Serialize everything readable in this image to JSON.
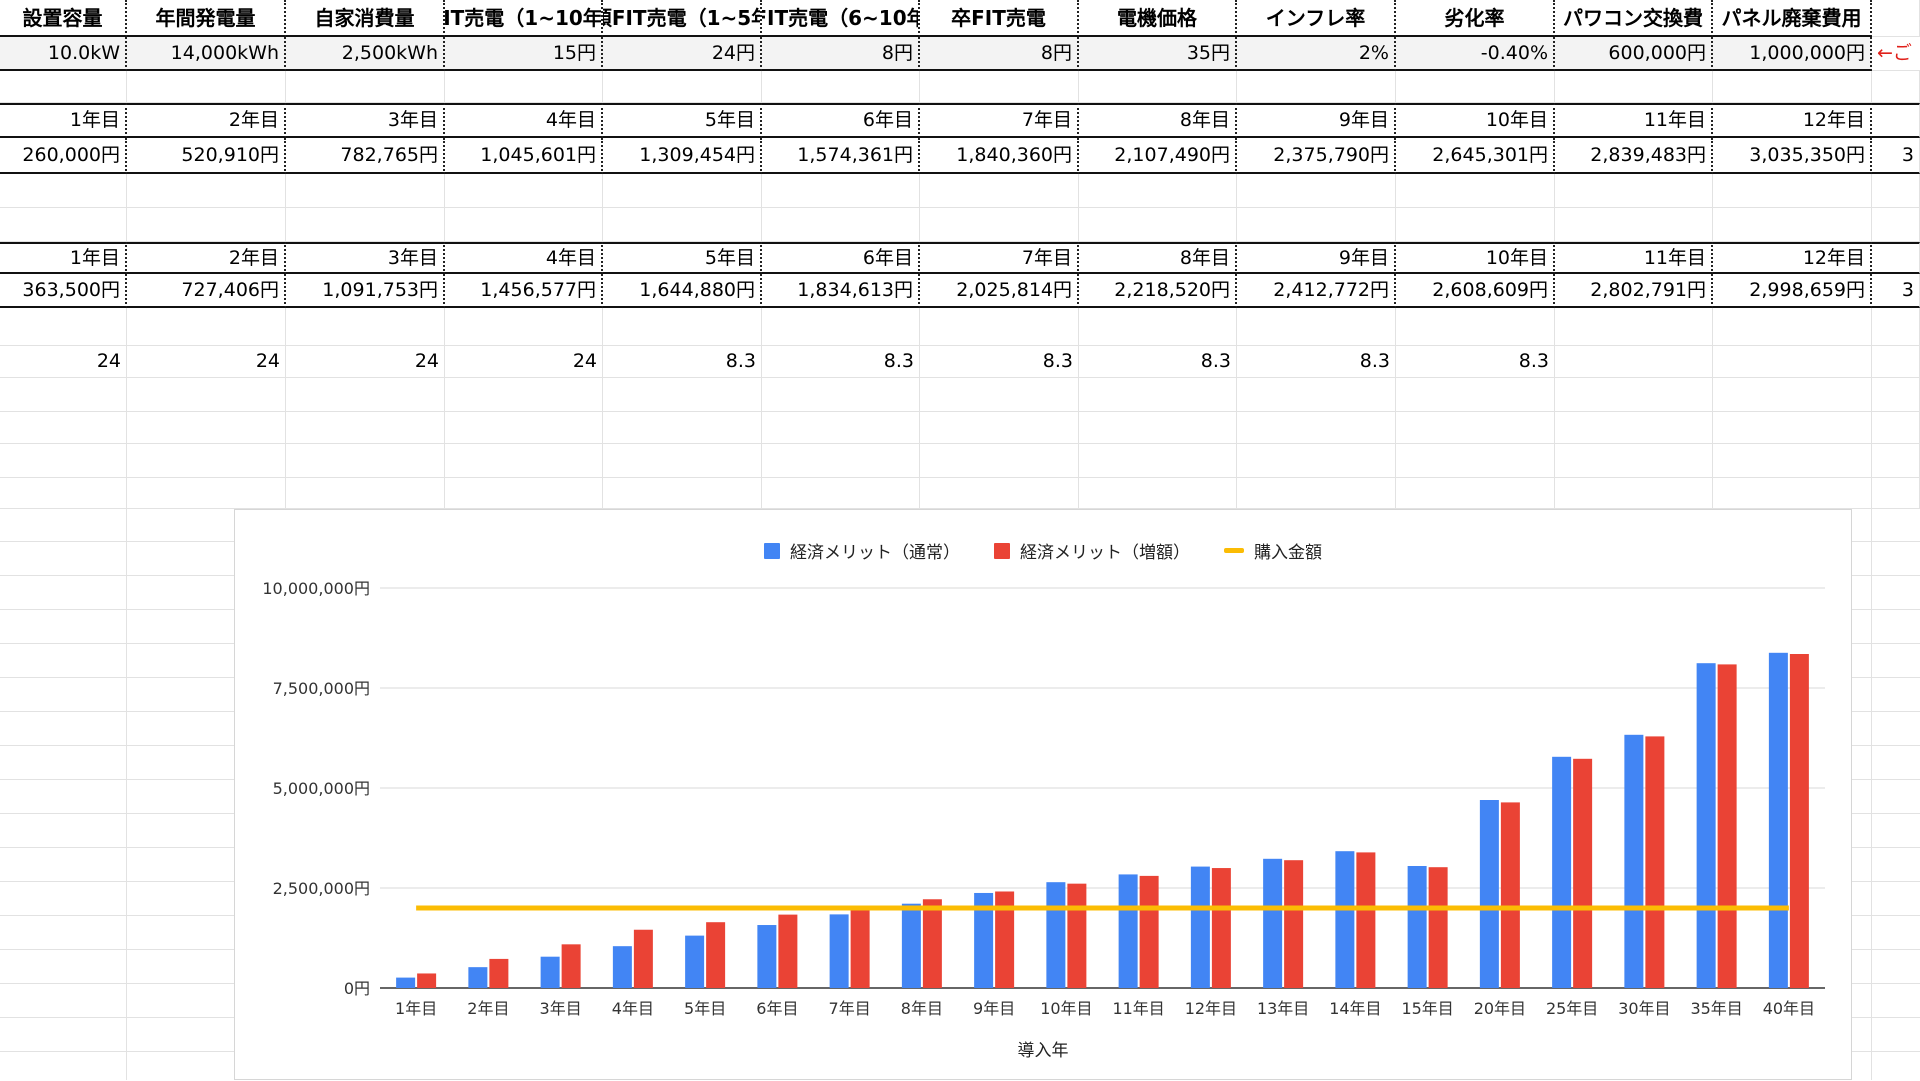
{
  "sheet": {
    "params_headers": [
      "設置容量",
      "年間発電量",
      "自家消費量",
      "IT売電（1~10年",
      "頒FIT売電（1~5年",
      "FIT売電（6~10年",
      "卒FIT売電",
      "電機価格",
      "インフレ率",
      "劣化率",
      "パワコン交換費",
      "パネル廃棄費用"
    ],
    "params_values": [
      "10.0kW",
      "14,000kWh",
      "2,500kWh",
      "15円",
      "24円",
      "8円",
      "8円",
      "35円",
      "2%",
      "-0.40%",
      "600,000円",
      "1,000,000円"
    ],
    "note_arrow": "←ご",
    "year_headers_a": [
      "1年目",
      "2年目",
      "3年目",
      "4年目",
      "5年目",
      "6年目",
      "7年目",
      "8年目",
      "9年目",
      "10年目",
      "11年目",
      "12年目"
    ],
    "values_a": [
      "260,000円",
      "520,910円",
      "782,765円",
      "1,045,601円",
      "1,309,454円",
      "1,574,361円",
      "1,840,360円",
      "2,107,490円",
      "2,375,790円",
      "2,645,301円",
      "2,839,483円",
      "3,035,350円"
    ],
    "overflow_a": "3",
    "year_headers_b": [
      "1年目",
      "2年目",
      "3年目",
      "4年目",
      "5年目",
      "6年目",
      "7年目",
      "8年目",
      "9年目",
      "10年目",
      "11年目",
      "12年目"
    ],
    "values_b": [
      "363,500円",
      "727,406円",
      "1,091,753円",
      "1,456,577円",
      "1,644,880円",
      "1,834,613円",
      "2,025,814円",
      "2,218,520円",
      "2,412,772円",
      "2,608,609円",
      "2,802,791円",
      "2,998,659円"
    ],
    "overflow_b": "3",
    "rates": [
      "24",
      "24",
      "24",
      "24",
      "8.3",
      "8.3",
      "8.3",
      "8.3",
      "8.3",
      "8.3",
      "",
      ""
    ]
  },
  "chart_data": {
    "type": "bar",
    "xlabel": "導入年",
    "ylabel": "",
    "ylim": [
      0,
      10000000
    ],
    "yticks": [
      "0円",
      "2,500,000円",
      "5,000,000円",
      "7,500,000円",
      "10,000,000円"
    ],
    "categories": [
      "1年目",
      "2年目",
      "3年目",
      "4年目",
      "5年目",
      "6年目",
      "7年目",
      "8年目",
      "9年目",
      "10年目",
      "11年目",
      "12年目",
      "13年目",
      "14年目",
      "15年目",
      "20年目",
      "25年目",
      "30年目",
      "35年目",
      "40年目"
    ],
    "series": [
      {
        "name": "経済メリット（通常）",
        "color": "#4285f4",
        "values": [
          260000,
          520910,
          782765,
          1045601,
          1309454,
          1574361,
          1840360,
          2107490,
          2375790,
          2645301,
          2839483,
          3035350,
          3230000,
          3420000,
          3050000,
          4700000,
          5780000,
          6330000,
          8120000,
          8380000
        ]
      },
      {
        "name": "経済メリット（増額）",
        "color": "#ea4335",
        "values": [
          363500,
          727406,
          1091753,
          1456577,
          1644880,
          1834613,
          2025814,
          2218520,
          2412772,
          2608609,
          2802791,
          2998659,
          3195000,
          3390000,
          3020000,
          4640000,
          5730000,
          6290000,
          8090000,
          8350000
        ]
      },
      {
        "name": "購入金額",
        "color": "#fbbc04",
        "type": "line",
        "values": [
          2000000,
          2000000,
          2000000,
          2000000,
          2000000,
          2000000,
          2000000,
          2000000,
          2000000,
          2000000,
          2000000,
          2000000,
          2000000,
          2000000,
          2000000,
          2000000,
          2000000,
          2000000,
          2000000,
          2000000
        ]
      }
    ],
    "legend_position": "top",
    "grid": true
  }
}
